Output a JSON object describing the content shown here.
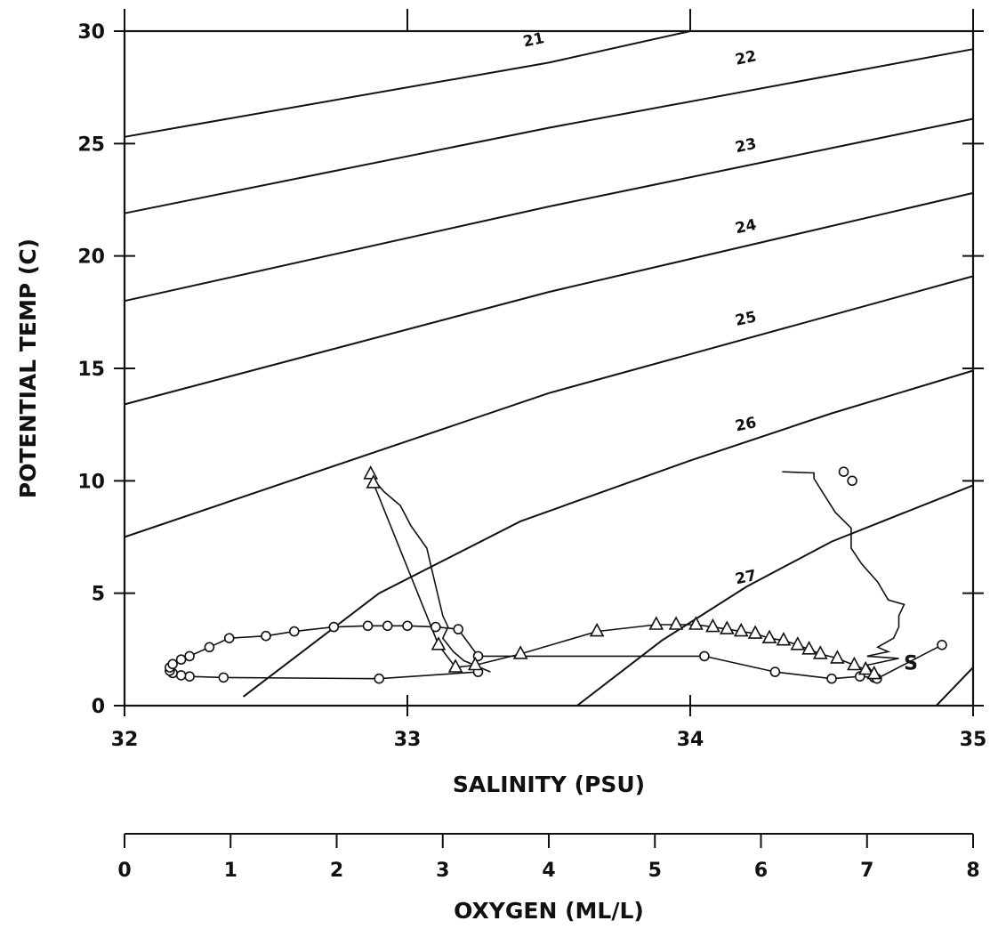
{
  "chart_data": {
    "type": "scatter",
    "ylabel": "POTENTIAL TEMP (C)",
    "xlabel": "SALINITY (PSU)",
    "x2label": "OXYGEN (ML/L)",
    "xlim": [
      32,
      35
    ],
    "ylim": [
      0,
      30
    ],
    "x2lim": [
      0,
      8
    ],
    "x_ticks": [
      32,
      33,
      34,
      35
    ],
    "y_ticks": [
      0,
      5,
      10,
      15,
      20,
      25,
      30
    ],
    "x2_ticks": [
      0,
      1,
      2,
      3,
      4,
      5,
      6,
      7,
      8
    ],
    "x_tick_labels": [
      "32",
      "33",
      "34",
      "35"
    ],
    "y_tick_labels": [
      "0",
      "5",
      "10",
      "15",
      "20",
      "25",
      "30"
    ],
    "x2_tick_labels": [
      "0",
      "1",
      "2",
      "3",
      "4",
      "5",
      "6",
      "7",
      "8"
    ],
    "grid": false,
    "isopycnals": [
      {
        "label": "21",
        "x": [
          32.0,
          33.5,
          34.0
        ],
        "y": [
          25.3,
          28.6,
          30.0
        ],
        "label_at": [
          33.45,
          29.4
        ]
      },
      {
        "label": "22",
        "x": [
          32.0,
          33.5,
          35.0
        ],
        "y": [
          21.9,
          25.7,
          29.2
        ],
        "label_at": [
          34.2,
          28.6
        ]
      },
      {
        "label": "23",
        "x": [
          32.0,
          33.5,
          35.0
        ],
        "y": [
          18.0,
          22.2,
          26.1
        ],
        "label_at": [
          34.2,
          24.7
        ]
      },
      {
        "label": "24",
        "x": [
          32.0,
          33.5,
          35.0
        ],
        "y": [
          13.4,
          18.4,
          22.8
        ],
        "label_at": [
          34.2,
          21.1
        ]
      },
      {
        "label": "25",
        "x": [
          32.0,
          33.5,
          35.0
        ],
        "y": [
          7.5,
          13.9,
          19.1
        ],
        "label_at": [
          34.2,
          17.0
        ]
      },
      {
        "label": "26",
        "x": [
          32.42,
          32.9,
          33.4,
          34.0,
          34.5,
          35.0
        ],
        "y": [
          0.4,
          5.0,
          8.2,
          10.9,
          13.0,
          14.9
        ],
        "label_at": [
          34.2,
          12.3
        ]
      },
      {
        "label": "27",
        "x": [
          33.6,
          33.9,
          34.2,
          34.5,
          35.0
        ],
        "y": [
          0.0,
          2.9,
          5.3,
          7.3,
          9.8
        ],
        "label_at": [
          34.2,
          5.5
        ]
      },
      {
        "label": "",
        "x": [
          34.87,
          35.0
        ],
        "y": [
          0.0,
          1.7
        ],
        "label_at": null
      }
    ],
    "series": [
      {
        "marker": "circle",
        "axis": "x",
        "x": [
          33.25,
          32.9,
          32.35,
          32.23,
          32.2,
          32.17,
          32.16,
          32.16,
          32.17,
          32.2,
          32.23,
          32.3,
          32.37,
          32.5,
          32.6,
          32.74,
          32.86,
          32.93,
          33.0,
          33.1,
          33.18,
          33.25,
          34.05,
          34.3,
          34.5,
          34.6,
          34.65,
          34.66,
          34.89
        ],
        "y": [
          1.5,
          1.2,
          1.25,
          1.3,
          1.35,
          1.45,
          1.55,
          1.7,
          1.85,
          2.05,
          2.2,
          2.6,
          3.0,
          3.1,
          3.3,
          3.5,
          3.55,
          3.55,
          3.55,
          3.5,
          3.4,
          2.2,
          2.2,
          1.5,
          1.2,
          1.3,
          1.25,
          1.2,
          2.7
        ]
      },
      {
        "marker": "triangle",
        "axis": "x",
        "x": [
          32.87,
          32.88,
          33.11,
          33.17,
          33.24,
          33.4,
          33.67,
          33.88,
          33.95,
          34.02,
          34.08,
          34.13,
          34.18,
          34.23,
          34.28,
          34.33,
          34.38,
          34.42,
          34.46,
          34.52,
          34.58,
          34.62,
          34.65
        ],
        "y": [
          10.3,
          9.9,
          2.7,
          1.7,
          1.8,
          2.3,
          3.3,
          3.6,
          3.6,
          3.6,
          3.5,
          3.4,
          3.3,
          3.2,
          3.0,
          2.9,
          2.7,
          2.5,
          2.3,
          2.1,
          1.8,
          1.6,
          1.4
        ]
      },
      {
        "marker": "none",
        "axis": "x2",
        "x": [
          2.3,
          2.45,
          2.6,
          2.7,
          2.85,
          2.9,
          2.95,
          3.0,
          3.05,
          3.0,
          3.05,
          3.1,
          3.15,
          3.2,
          3.25,
          3.3,
          3.35,
          3.4,
          3.45
        ],
        "y": [
          10.3,
          9.5,
          8.9,
          8.0,
          7.0,
          6.0,
          5.0,
          4.0,
          3.5,
          3.0,
          2.7,
          2.4,
          2.2,
          2.0,
          1.9,
          1.8,
          1.7,
          1.6,
          1.5
        ]
      },
      {
        "marker": "none",
        "axis": "x2",
        "x": [
          6.2,
          6.5,
          6.5,
          6.7,
          6.85,
          6.85,
          6.95,
          7.1,
          7.2,
          7.35,
          7.3,
          7.3,
          7.25,
          7.1,
          7.2,
          7.0,
          7.3,
          7.0,
          7.05
        ],
        "y": [
          10.4,
          10.35,
          10.1,
          8.6,
          7.9,
          7.0,
          6.3,
          5.5,
          4.7,
          4.5,
          4.0,
          3.5,
          3.0,
          2.6,
          2.4,
          2.2,
          2.1,
          1.8,
          1.5
        ]
      },
      {
        "marker": "circle",
        "axis": "x2",
        "x": [
          6.78,
          6.86
        ],
        "y": [
          10.4,
          10.0
        ]
      }
    ],
    "annotations": [
      {
        "text": "S",
        "x": 34.78,
        "y": 1.6
      }
    ]
  }
}
